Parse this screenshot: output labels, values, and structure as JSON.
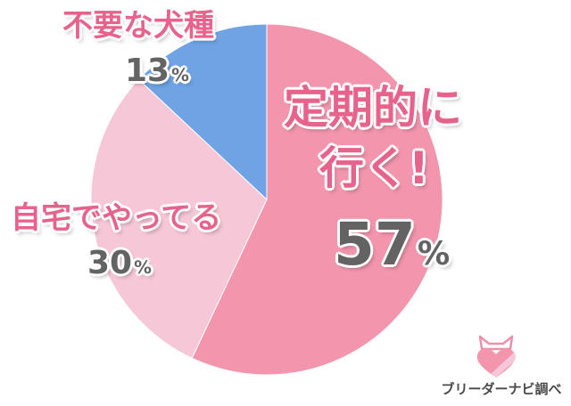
{
  "chart_data": {
    "type": "pie",
    "slices": [
      {
        "label": "定期的に行く!",
        "value": 57,
        "pct_text": "57",
        "color": "#f295ad"
      },
      {
        "label": "自宅でやってる",
        "value": 30,
        "pct_text": "30",
        "color": "#f6c7d6"
      },
      {
        "label": "不要な犬種",
        "value": 13,
        "pct_text": "13",
        "color": "#6fa3e3"
      }
    ],
    "start_angle_deg": 0,
    "direction": "clockwise"
  },
  "labels": {
    "unneeded": "不要な犬種",
    "home": "自宅でやってる",
    "regular_line1": "定期的に",
    "regular_line2": "行く!",
    "percent_sign": "%"
  },
  "logo": {
    "text": "ブリーダーナビ調べ"
  }
}
